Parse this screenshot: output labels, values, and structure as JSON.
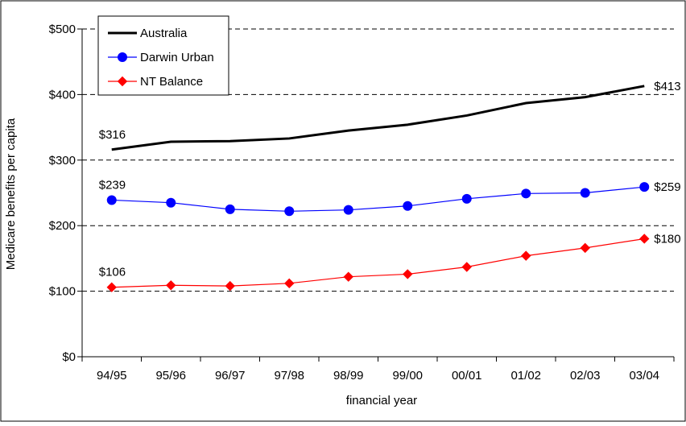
{
  "chart_data": {
    "type": "line",
    "xlabel": "financial year",
    "ylabel": "Medicare benefits per capita",
    "categories": [
      "94/95",
      "95/96",
      "96/97",
      "97/98",
      "98/99",
      "99/00",
      "00/01",
      "01/02",
      "02/03",
      "03/04"
    ],
    "ylim": [
      0,
      500
    ],
    "yticks": [
      0,
      100,
      200,
      300,
      400,
      500
    ],
    "ytick_labels": [
      "$0",
      "$100",
      "$200",
      "$300",
      "$400",
      "$500"
    ],
    "grid": "horizontal dashed",
    "legend_position": "top-left",
    "series": [
      {
        "name": "Australia",
        "color": "#000000",
        "marker": "none",
        "values": [
          316,
          328,
          329,
          333,
          345,
          354,
          368,
          387,
          396,
          413
        ],
        "labels": [
          {
            "index": 0,
            "text": "$316"
          },
          {
            "index": 9,
            "text": "$413"
          }
        ]
      },
      {
        "name": "Darwin Urban",
        "color": "#0000ff",
        "marker": "circle",
        "values": [
          239,
          235,
          225,
          222,
          224,
          230,
          241,
          249,
          250,
          259
        ],
        "labels": [
          {
            "index": 0,
            "text": "$239"
          },
          {
            "index": 9,
            "text": "$259"
          }
        ]
      },
      {
        "name": "NT Balance",
        "color": "#ff0000",
        "marker": "diamond",
        "values": [
          106,
          109,
          108,
          112,
          122,
          126,
          137,
          154,
          166,
          180
        ],
        "labels": [
          {
            "index": 0,
            "text": "$106"
          },
          {
            "index": 9,
            "text": "$180"
          }
        ]
      }
    ]
  }
}
